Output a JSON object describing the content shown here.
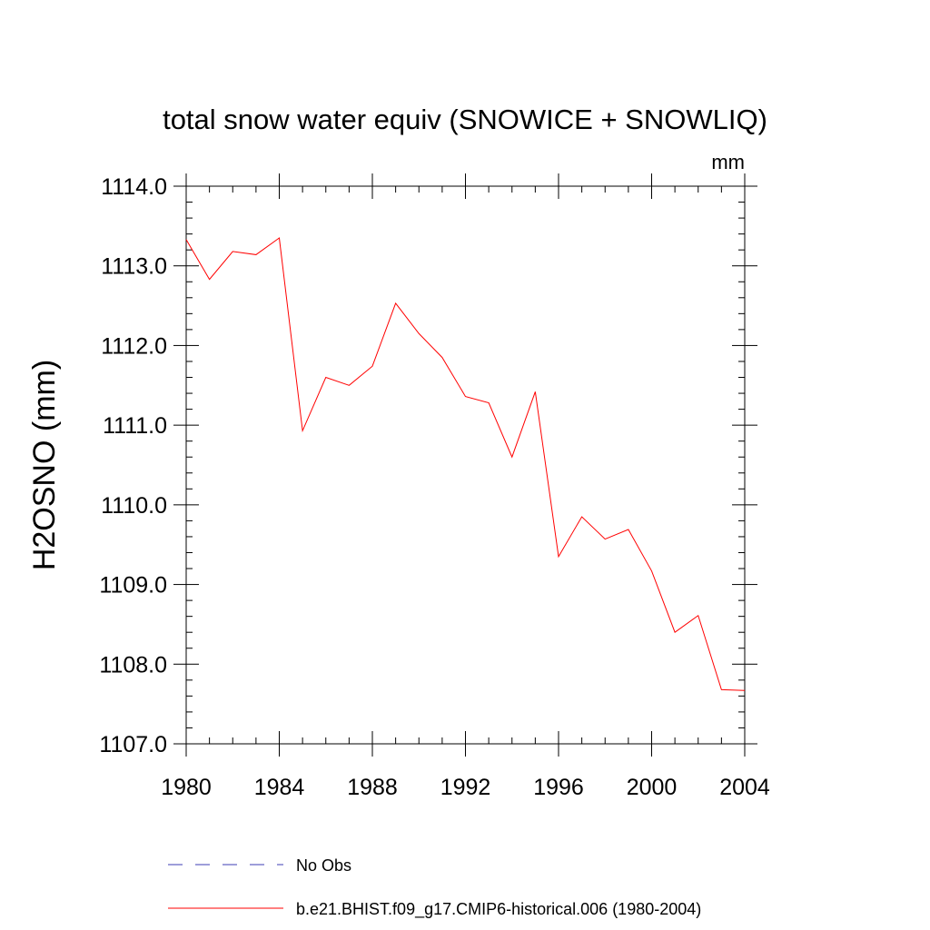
{
  "chart_data": {
    "type": "line",
    "title": "total snow water equiv (SNOWICE + SNOWLIQ)",
    "units": "mm",
    "ylabel": "H2OSNO  (mm)",
    "xlabel": "",
    "xlim": [
      1980,
      2004
    ],
    "ylim": [
      1107.0,
      1114.0
    ],
    "x_ticks": [
      1980,
      1984,
      1988,
      1992,
      1996,
      2000,
      2004
    ],
    "x_tick_labels": [
      "1980",
      "1984",
      "1988",
      "1992",
      "1996",
      "2000",
      "2004"
    ],
    "y_ticks": [
      1107.0,
      1108.0,
      1109.0,
      1110.0,
      1111.0,
      1112.0,
      1113.0,
      1114.0
    ],
    "y_tick_labels": [
      "1107.0",
      "1108.0",
      "1109.0",
      "1110.0",
      "1111.0",
      "1112.0",
      "1113.0",
      "1114.0"
    ],
    "grid": false,
    "legend_position": "bottom",
    "series": [
      {
        "name": "b.e21.BHIST.f09_g17.CMIP6-historical.006 (1980-2004)",
        "color": "#ff0000",
        "style": "solid",
        "x": [
          1980,
          1981,
          1982,
          1983,
          1984,
          1985,
          1986,
          1987,
          1988,
          1989,
          1990,
          1991,
          1992,
          1993,
          1994,
          1995,
          1996,
          1997,
          1998,
          1999,
          2000,
          2001,
          2002,
          2003,
          2004
        ],
        "values": [
          1113.33,
          1112.83,
          1113.18,
          1113.14,
          1113.35,
          1110.93,
          1111.6,
          1111.5,
          1111.74,
          1112.53,
          1112.15,
          1111.85,
          1111.36,
          1111.28,
          1110.6,
          1111.42,
          1109.35,
          1109.85,
          1109.57,
          1109.69,
          1109.17,
          1108.4,
          1108.61,
          1107.68,
          1107.67
        ]
      }
    ],
    "legend": [
      {
        "label": "No Obs",
        "color": "#3c3cb4",
        "style": "dashed"
      },
      {
        "label": "b.e21.BHIST.f09_g17.CMIP6-historical.006 (1980-2004)",
        "color": "#ff0000",
        "style": "solid"
      }
    ]
  }
}
